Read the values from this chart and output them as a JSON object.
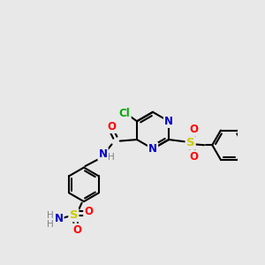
{
  "bg_color": "#e8e8e8",
  "colors": {
    "C": "#000000",
    "N": "#0000cc",
    "O": "#ff0000",
    "S": "#cccc00",
    "Cl": "#00aa00",
    "H": "#808080"
  },
  "lw": 1.5,
  "fs": 8.5
}
